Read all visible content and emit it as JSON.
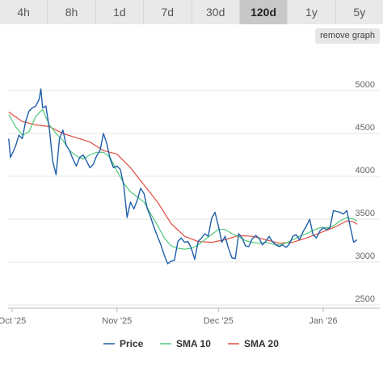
{
  "tabs": [
    {
      "label": "4h",
      "active": false
    },
    {
      "label": "8h",
      "active": false
    },
    {
      "label": "1d",
      "active": false
    },
    {
      "label": "7d",
      "active": false
    },
    {
      "label": "30d",
      "active": false
    },
    {
      "label": "120d",
      "active": true
    },
    {
      "label": "1y",
      "active": false
    },
    {
      "label": "5y",
      "active": false
    }
  ],
  "remove_graph_label": "remove graph",
  "chart_data": {
    "type": "line",
    "ylim": [
      2500,
      5000
    ],
    "y_ticks": [
      5000,
      4500,
      4000,
      3500,
      3000,
      2500
    ],
    "x_ticks": [
      {
        "label": "Oct '25",
        "day": 0
      },
      {
        "label": "Nov '25",
        "day": 31
      },
      {
        "label": "Dec '25",
        "day": 61
      },
      {
        "label": "Jan '26",
        "day": 92
      }
    ],
    "x_start_day": -1,
    "x_end_day": 117,
    "grid": true,
    "legend_position": "bottom",
    "series": [
      {
        "name": "Price",
        "color": "#1f5fa8",
        "points": [
          [
            -1,
            4440
          ],
          [
            -0.5,
            4220
          ],
          [
            0,
            4260
          ],
          [
            1,
            4350
          ],
          [
            2,
            4480
          ],
          [
            3,
            4440
          ],
          [
            4,
            4640
          ],
          [
            5,
            4760
          ],
          [
            6,
            4800
          ],
          [
            7,
            4820
          ],
          [
            8,
            4900
          ],
          [
            8.5,
            5020
          ],
          [
            9,
            4800
          ],
          [
            10,
            4820
          ],
          [
            11,
            4560
          ],
          [
            12,
            4180
          ],
          [
            13,
            4020
          ],
          [
            14,
            4440
          ],
          [
            15,
            4540
          ],
          [
            16,
            4360
          ],
          [
            17,
            4300
          ],
          [
            18,
            4200
          ],
          [
            19,
            4120
          ],
          [
            20,
            4220
          ],
          [
            21,
            4250
          ],
          [
            22,
            4180
          ],
          [
            23,
            4100
          ],
          [
            24,
            4140
          ],
          [
            25,
            4240
          ],
          [
            26,
            4300
          ],
          [
            27,
            4500
          ],
          [
            28,
            4380
          ],
          [
            29,
            4200
          ],
          [
            30,
            4100
          ],
          [
            31,
            4120
          ],
          [
            32,
            4080
          ],
          [
            33,
            3900
          ],
          [
            34,
            3520
          ],
          [
            35,
            3700
          ],
          [
            36,
            3620
          ],
          [
            37,
            3720
          ],
          [
            38,
            3860
          ],
          [
            39,
            3800
          ],
          [
            40,
            3620
          ],
          [
            41,
            3520
          ],
          [
            42,
            3400
          ],
          [
            43,
            3300
          ],
          [
            44,
            3200
          ],
          [
            45,
            3080
          ],
          [
            46,
            2980
          ],
          [
            47,
            3010
          ],
          [
            48,
            3020
          ],
          [
            49,
            3240
          ],
          [
            50,
            3280
          ],
          [
            51,
            3230
          ],
          [
            52,
            3240
          ],
          [
            53,
            3160
          ],
          [
            54,
            3030
          ],
          [
            55,
            3240
          ],
          [
            56,
            3280
          ],
          [
            57,
            3330
          ],
          [
            58,
            3300
          ],
          [
            59,
            3510
          ],
          [
            60,
            3580
          ],
          [
            61,
            3420
          ],
          [
            62,
            3230
          ],
          [
            63,
            3300
          ],
          [
            64,
            3160
          ],
          [
            65,
            3050
          ],
          [
            66,
            3040
          ],
          [
            67,
            3330
          ],
          [
            68,
            3280
          ],
          [
            69,
            3190
          ],
          [
            70,
            3180
          ],
          [
            71,
            3270
          ],
          [
            72,
            3310
          ],
          [
            73,
            3280
          ],
          [
            74,
            3200
          ],
          [
            75,
            3240
          ],
          [
            76,
            3300
          ],
          [
            77,
            3240
          ],
          [
            78,
            3200
          ],
          [
            79,
            3180
          ],
          [
            80,
            3200
          ],
          [
            81,
            3170
          ],
          [
            82,
            3210
          ],
          [
            83,
            3300
          ],
          [
            84,
            3320
          ],
          [
            85,
            3260
          ],
          [
            86,
            3350
          ],
          [
            87,
            3420
          ],
          [
            88,
            3500
          ],
          [
            89,
            3320
          ],
          [
            90,
            3280
          ],
          [
            91,
            3360
          ],
          [
            92,
            3400
          ],
          [
            93,
            3380
          ],
          [
            94,
            3400
          ],
          [
            95,
            3600
          ],
          [
            96,
            3590
          ],
          [
            97,
            3580
          ],
          [
            98,
            3560
          ],
          [
            99,
            3600
          ],
          [
            100,
            3410
          ],
          [
            101,
            3230
          ],
          [
            102,
            3260
          ]
        ]
      },
      {
        "name": "SMA 10",
        "color": "#4fc97a",
        "points": [
          [
            -1,
            4720
          ],
          [
            1,
            4580
          ],
          [
            3,
            4480
          ],
          [
            5,
            4520
          ],
          [
            7,
            4700
          ],
          [
            9,
            4780
          ],
          [
            11,
            4600
          ],
          [
            13,
            4500
          ],
          [
            15,
            4420
          ],
          [
            17,
            4300
          ],
          [
            19,
            4240
          ],
          [
            21,
            4200
          ],
          [
            23,
            4250
          ],
          [
            25,
            4280
          ],
          [
            27,
            4280
          ],
          [
            29,
            4220
          ],
          [
            31,
            4060
          ],
          [
            33,
            3920
          ],
          [
            35,
            3820
          ],
          [
            37,
            3760
          ],
          [
            39,
            3700
          ],
          [
            41,
            3560
          ],
          [
            43,
            3430
          ],
          [
            45,
            3280
          ],
          [
            47,
            3190
          ],
          [
            49,
            3160
          ],
          [
            51,
            3150
          ],
          [
            53,
            3160
          ],
          [
            55,
            3200
          ],
          [
            57,
            3260
          ],
          [
            59,
            3320
          ],
          [
            61,
            3380
          ],
          [
            63,
            3380
          ],
          [
            65,
            3330
          ],
          [
            67,
            3300
          ],
          [
            69,
            3250
          ],
          [
            71,
            3230
          ],
          [
            73,
            3220
          ],
          [
            75,
            3230
          ],
          [
            77,
            3210
          ],
          [
            79,
            3200
          ],
          [
            81,
            3220
          ],
          [
            83,
            3260
          ],
          [
            85,
            3300
          ],
          [
            87,
            3330
          ],
          [
            89,
            3370
          ],
          [
            91,
            3400
          ],
          [
            93,
            3400
          ],
          [
            95,
            3420
          ],
          [
            97,
            3480
          ],
          [
            99,
            3520
          ],
          [
            101,
            3500
          ],
          [
            102,
            3480
          ]
        ]
      },
      {
        "name": "SMA 20",
        "color": "#e14b3f",
        "points": [
          [
            -1,
            4750
          ],
          [
            3,
            4640
          ],
          [
            7,
            4600
          ],
          [
            11,
            4580
          ],
          [
            15,
            4500
          ],
          [
            19,
            4450
          ],
          [
            23,
            4400
          ],
          [
            27,
            4300
          ],
          [
            31,
            4260
          ],
          [
            35,
            4100
          ],
          [
            39,
            3900
          ],
          [
            43,
            3700
          ],
          [
            47,
            3450
          ],
          [
            51,
            3300
          ],
          [
            55,
            3240
          ],
          [
            59,
            3230
          ],
          [
            63,
            3260
          ],
          [
            67,
            3310
          ],
          [
            71,
            3300
          ],
          [
            75,
            3260
          ],
          [
            79,
            3220
          ],
          [
            83,
            3230
          ],
          [
            87,
            3280
          ],
          [
            91,
            3340
          ],
          [
            95,
            3400
          ],
          [
            99,
            3480
          ],
          [
            101,
            3470
          ],
          [
            102,
            3440
          ]
        ]
      }
    ]
  }
}
